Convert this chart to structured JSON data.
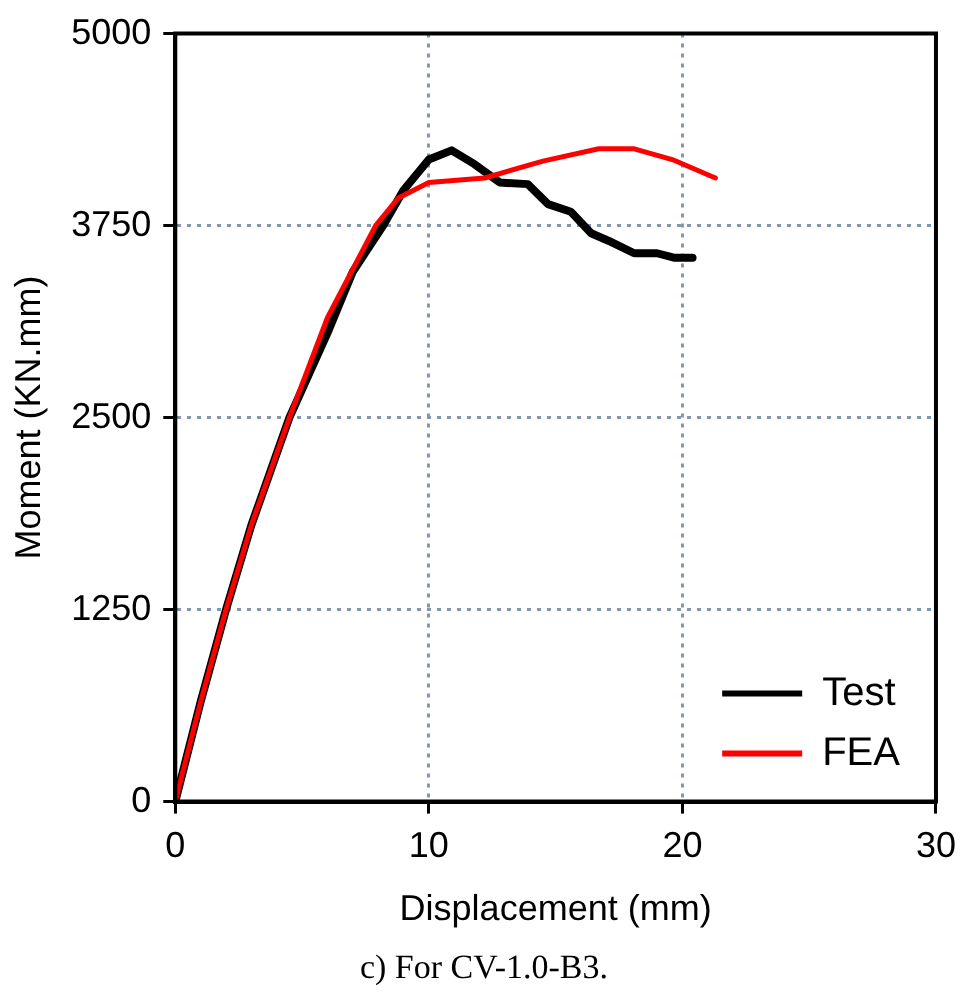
{
  "chart_data": {
    "type": "line",
    "xlabel": "Displacement (mm)",
    "ylabel": "Moment (KN.mm)",
    "annotations": [
      "c) For CV-1.0-B3."
    ],
    "xlim": [
      0,
      30
    ],
    "xticks": [
      0,
      10,
      20,
      30
    ],
    "ylim": [
      0,
      5000
    ],
    "yticks": [
      0,
      1250,
      2500,
      3750,
      5000
    ],
    "grid": true,
    "legend": "bottom right",
    "marker": "none",
    "line_style": "solid",
    "series": [
      {
        "name": "Test",
        "color": "#000000",
        "x": [
          0,
          1,
          2,
          3,
          4.5,
          6,
          7,
          8.2,
          9,
          10,
          10.9,
          11.8,
          12.8,
          13.9,
          14.7,
          15.6,
          16.4,
          17.1,
          18.1,
          19,
          19.7,
          20.4
        ],
        "values": [
          0,
          650,
          1250,
          1800,
          2500,
          3050,
          3450,
          3750,
          3980,
          4180,
          4240,
          4150,
          4030,
          4020,
          3890,
          3840,
          3700,
          3650,
          3570,
          3570,
          3540,
          3540
        ]
      },
      {
        "name": "FEA",
        "color": "#ff0000",
        "x": [
          0,
          1,
          2,
          3,
          4.5,
          6,
          7.9,
          8.8,
          10,
          12.2,
          14.5,
          16.7,
          18.1,
          19.6,
          21.3
        ],
        "values": [
          0,
          650,
          1250,
          1800,
          2500,
          3150,
          3750,
          3930,
          4030,
          4060,
          4170,
          4250,
          4250,
          4180,
          4060
        ]
      }
    ]
  }
}
